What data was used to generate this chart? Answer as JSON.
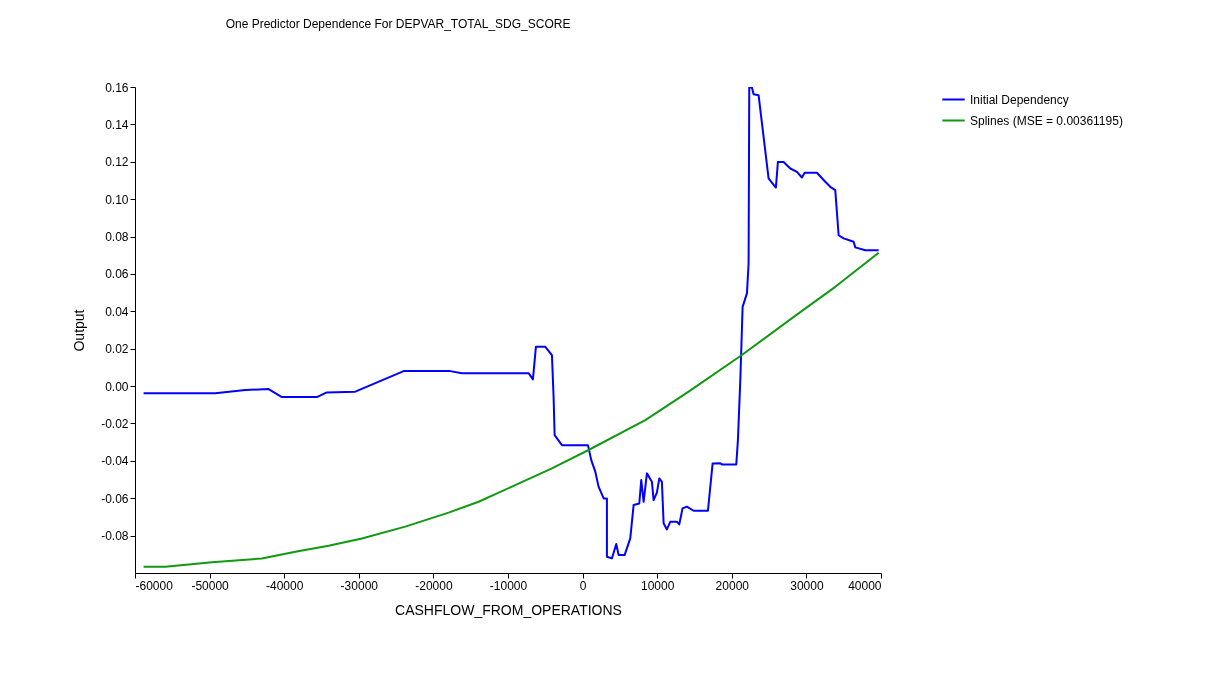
{
  "chart_data": {
    "type": "line",
    "title": "One Predictor Dependence For DEPVAR_TOTAL_SDG_SCORE",
    "xlabel": "CASHFLOW_FROM_OPERATIONS",
    "ylabel": "Output",
    "xlim": [
      -60000,
      40000
    ],
    "xticks": [
      -60000,
      -50000,
      -40000,
      -30000,
      -20000,
      -10000,
      0,
      10000,
      20000,
      30000,
      40000
    ],
    "ylim": [
      -0.1,
      0.16
    ],
    "yticks": [
      {
        "value": -0.08,
        "label": "-0.08"
      },
      {
        "value": -0.06,
        "label": "-0.06"
      },
      {
        "value": -0.04,
        "label": "-0.04"
      },
      {
        "value": -0.02,
        "label": "-0.02"
      },
      {
        "value": 0,
        "label": "0.00"
      },
      {
        "value": 0.02,
        "label": "0.02"
      },
      {
        "value": 0.04,
        "label": "0.04"
      },
      {
        "value": 0.06,
        "label": "0.06"
      },
      {
        "value": 0.08,
        "label": "0.08"
      },
      {
        "value": 0.1,
        "label": "0.10"
      },
      {
        "value": 0.12,
        "label": "0.12"
      },
      {
        "value": 0.14,
        "label": "0.14"
      },
      {
        "value": 0.16,
        "label": "0.16"
      }
    ],
    "grid": false,
    "legend": "right",
    "marker": "none",
    "line_style": "solid",
    "series": [
      {
        "name": "Initial Dependency",
        "color": "#0000ff",
        "x": [
          -58850,
          -49240,
          -45220,
          -42090,
          -40310,
          -35620,
          -34280,
          -30470,
          -23990,
          -17740,
          -16180,
          -7240,
          -6660,
          -6260,
          -5000,
          -4110,
          -3890,
          -3750,
          -2770,
          720,
          1160,
          1700,
          2140,
          2820,
          3260,
          3260,
          3930,
          4510,
          4830,
          5630,
          6390,
          6840,
          7600,
          7860,
          8180,
          8620,
          9290,
          9520,
          9960,
          10280,
          10630,
          10860,
          11300,
          11750,
          12640,
          12960,
          13400,
          13980,
          14880,
          16800,
          17430,
          18460,
          18670,
          20600,
          20820,
          21140,
          21450,
          22030,
          22250,
          22340,
          22700,
          22920,
          23590,
          24930,
          25910,
          26180,
          26940,
          27840,
          28730,
          29400,
          29760,
          31410,
          32530,
          33200,
          33870,
          34320,
          34990,
          36330,
          36550,
          37890,
          39680
        ],
        "values": [
          -0.0039,
          -0.0039,
          -0.0021,
          -0.0016,
          -0.0059,
          -0.0059,
          -0.0034,
          -0.003,
          0.008,
          0.008,
          0.0069,
          0.0069,
          0.0036,
          0.021,
          0.021,
          0.0166,
          -0.0057,
          -0.0262,
          -0.0316,
          -0.0316,
          -0.0396,
          -0.0458,
          -0.0538,
          -0.0601,
          -0.0601,
          -0.0913,
          -0.0922,
          -0.0845,
          -0.0904,
          -0.0904,
          -0.0815,
          -0.0636,
          -0.0628,
          -0.0503,
          -0.0619,
          -0.0467,
          -0.0512,
          -0.061,
          -0.057,
          -0.0494,
          -0.0512,
          -0.0734,
          -0.0767,
          -0.0726,
          -0.0726,
          -0.074,
          -0.0654,
          -0.0645,
          -0.0667,
          -0.0667,
          -0.0414,
          -0.0413,
          -0.0419,
          -0.0419,
          -0.0289,
          0.0032,
          0.0424,
          0.0496,
          0.0656,
          0.1597,
          0.1597,
          0.1561,
          0.1556,
          0.1111,
          0.1062,
          0.1199,
          0.1199,
          0.1164,
          0.1146,
          0.1116,
          0.1141,
          0.1141,
          0.1093,
          0.1066,
          0.1048,
          0.0807,
          0.079,
          0.0772,
          0.0742,
          0.0727,
          0.0727
        ]
      },
      {
        "name": "Splines (MSE = 0.00361195)",
        "color": "#119911",
        "x": [
          -58850,
          -55940,
          -49690,
          -42990,
          -38510,
          -34050,
          -29580,
          -23770,
          -17960,
          -13940,
          -9480,
          -4110,
          800,
          8400,
          14210,
          21350,
          28950,
          33870,
          39680
        ],
        "values": [
          -0.0966,
          -0.0966,
          -0.0943,
          -0.0922,
          -0.0886,
          -0.0854,
          -0.0815,
          -0.0752,
          -0.0677,
          -0.0619,
          -0.0538,
          -0.044,
          -0.0342,
          -0.0182,
          -0.003,
          0.0166,
          0.0389,
          0.0531,
          0.0713
        ]
      }
    ]
  }
}
